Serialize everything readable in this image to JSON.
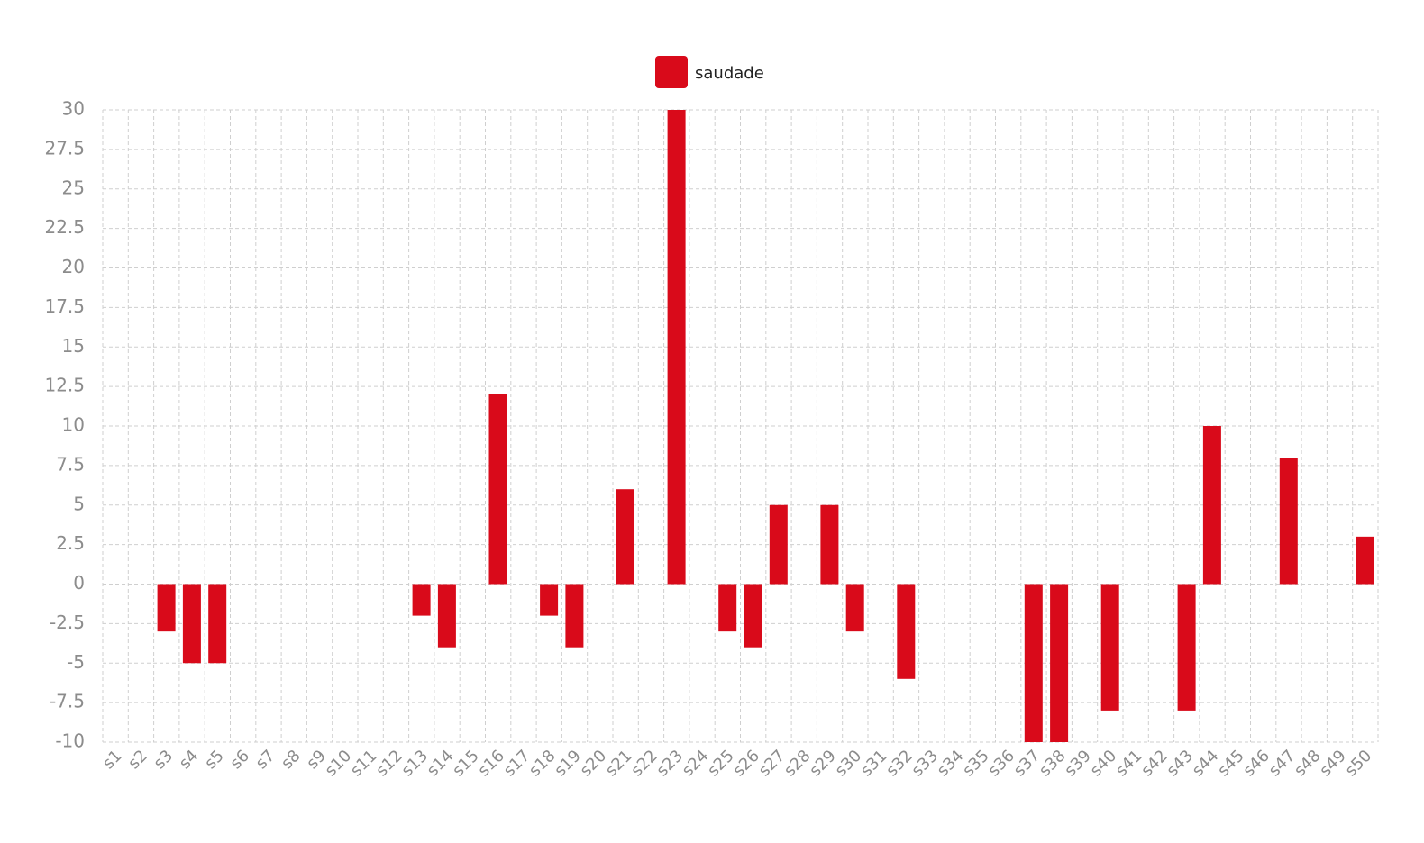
{
  "chart_data": {
    "type": "bar",
    "categories": [
      "s1",
      "s2",
      "s3",
      "s4",
      "s5",
      "s6",
      "s7",
      "s8",
      "s9",
      "s10",
      "s11",
      "s12",
      "s13",
      "s14",
      "s15",
      "s16",
      "s17",
      "s18",
      "s19",
      "s20",
      "s21",
      "s22",
      "s23",
      "s24",
      "s25",
      "s26",
      "s27",
      "s28",
      "s29",
      "s30",
      "s31",
      "s32",
      "s33",
      "s34",
      "s35",
      "s36",
      "s37",
      "s38",
      "s39",
      "s40",
      "s41",
      "s42",
      "s43",
      "s44",
      "s45",
      "s46",
      "s47",
      "s48",
      "s49",
      "s50"
    ],
    "series": [
      {
        "name": "saudade",
        "color": "#d90a1a",
        "values": [
          0,
          0,
          -3,
          -5,
          -5,
          0,
          0,
          0,
          0,
          0,
          0,
          0,
          -2,
          -4,
          0,
          12,
          0,
          -2,
          -4,
          0,
          6,
          0,
          30,
          0,
          -3,
          -4,
          5,
          0,
          5,
          -3,
          0,
          -6,
          0,
          0,
          0,
          0,
          -10,
          -10,
          0,
          -8,
          0,
          0,
          -8,
          10,
          0,
          0,
          8,
          0,
          0,
          3
        ]
      }
    ],
    "y_ticks": [
      "30",
      "27.5",
      "25",
      "22.5",
      "20",
      "17.5",
      "15",
      "12.5",
      "10",
      "7.5",
      "5",
      "2.5",
      "0",
      "-2.5",
      "-5",
      "-7.5",
      "-10"
    ],
    "ylim": [
      -10,
      30
    ],
    "grid": true,
    "legend_position": "top-center"
  }
}
